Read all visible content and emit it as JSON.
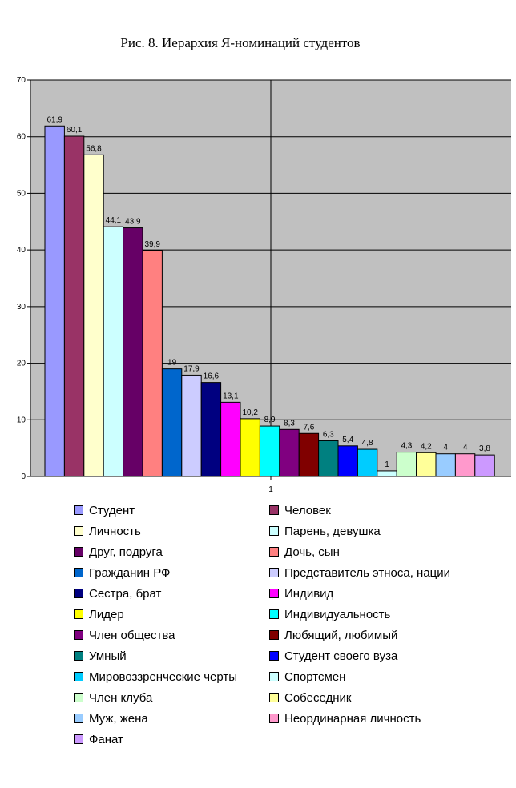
{
  "chart_data": {
    "type": "bar",
    "title": "Рис. 8. Иерархия Я-номинаций студентов",
    "category_label": "1",
    "ylim": [
      0,
      70
    ],
    "yticks": [
      0,
      10,
      20,
      30,
      40,
      50,
      60,
      70
    ],
    "grid": true,
    "legend_position": "bottom",
    "series": [
      {
        "name": "Студент",
        "value": 61.9,
        "label": "61,9",
        "color": "#9999ff"
      },
      {
        "name": "Человек",
        "value": 60.1,
        "label": "60,1",
        "color": "#993366"
      },
      {
        "name": "Личность",
        "value": 56.8,
        "label": "56,8",
        "color": "#ffffcc"
      },
      {
        "name": "Парень, девушка",
        "value": 44.1,
        "label": "44,1",
        "color": "#ccffff"
      },
      {
        "name": "Друг, подруга",
        "value": 43.9,
        "label": "43,9",
        "color": "#660066"
      },
      {
        "name": "Дочь, сын",
        "value": 39.9,
        "label": "39,9",
        "color": "#ff8080"
      },
      {
        "name": "Гражданин РФ",
        "value": 19,
        "label": "19",
        "color": "#0066cc"
      },
      {
        "name": "Представитель этноса, нации",
        "value": 17.9,
        "label": "17,9",
        "color": "#ccccff"
      },
      {
        "name": "Сестра, брат",
        "value": 16.6,
        "label": "16,6",
        "color": "#000080"
      },
      {
        "name": "Индивид",
        "value": 13.1,
        "label": "13,1",
        "color": "#ff00ff"
      },
      {
        "name": "Лидер",
        "value": 10.2,
        "label": "10,2",
        "color": "#ffff00"
      },
      {
        "name": "Индивидуальность",
        "value": 8.9,
        "label": "8,9",
        "color": "#00ffff"
      },
      {
        "name": "Член общества",
        "value": 8.3,
        "label": "8,3",
        "color": "#800080"
      },
      {
        "name": "Любящий, любимый",
        "value": 7.6,
        "label": "7,6",
        "color": "#800000"
      },
      {
        "name": "Умный",
        "value": 6.3,
        "label": "6,3",
        "color": "#008080"
      },
      {
        "name": "Студент своего вуза",
        "value": 5.4,
        "label": "5,4",
        "color": "#0000ff"
      },
      {
        "name": "Мировоззренческие черты",
        "value": 4.8,
        "label": "4,8",
        "color": "#00ccff"
      },
      {
        "name": "Спортсмен",
        "value": 1,
        "label": "1",
        "color": "#ccffff"
      },
      {
        "name": "Член клуба",
        "value": 4.3,
        "label": "4,3",
        "color": "#ccffcc"
      },
      {
        "name": "Собеседник",
        "value": 4.2,
        "label": "4,2",
        "color": "#ffff99"
      },
      {
        "name": "Муж, жена",
        "value": 4,
        "label": "4",
        "color": "#99ccff"
      },
      {
        "name": "Неординарная личность",
        "value": 4,
        "label": "4",
        "color": "#ff99cc"
      },
      {
        "name": "Фанат",
        "value": 3.8,
        "label": "3,8",
        "color": "#cc99ff"
      }
    ]
  },
  "colors": {
    "plot_background": "#c0c0c0",
    "gridline": "#000000"
  }
}
